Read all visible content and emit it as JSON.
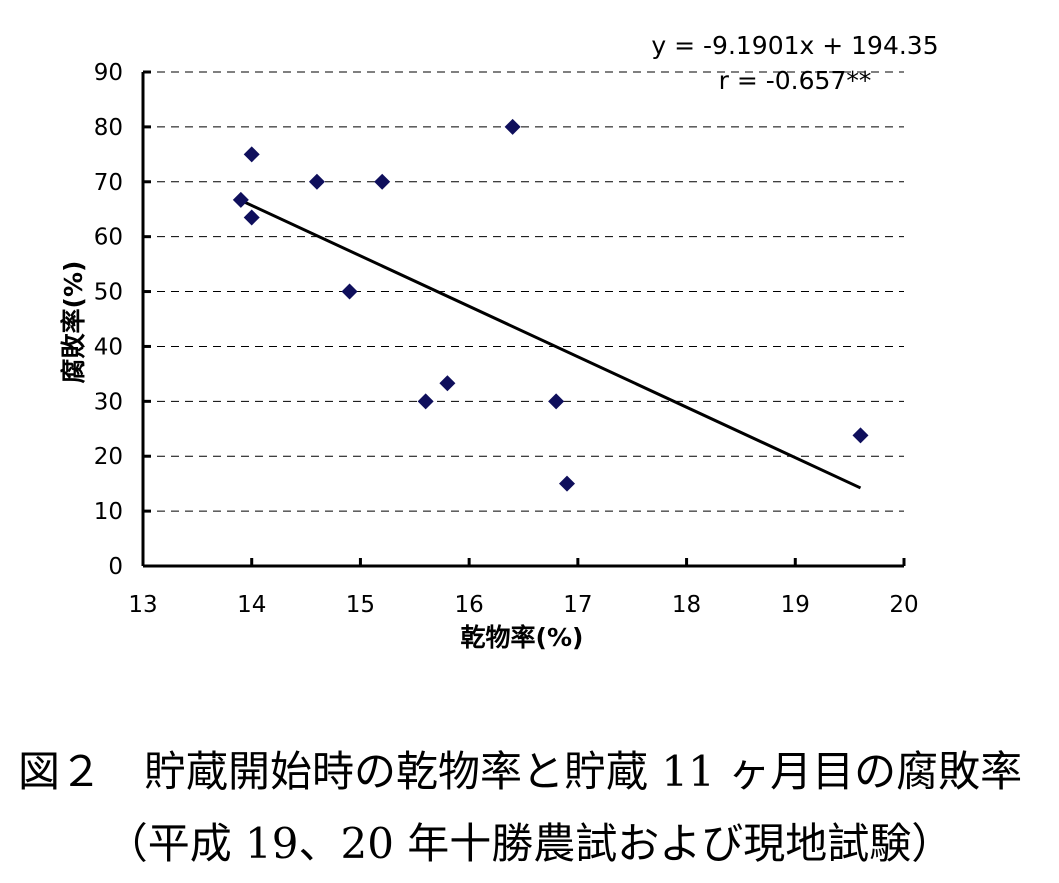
{
  "chart_data": {
    "type": "scatter",
    "xlabel": "乾物率(%)",
    "ylabel": "腐敗率(%)",
    "xlim": [
      13,
      20
    ],
    "ylim": [
      0,
      90
    ],
    "x_ticks": [
      "13",
      "14",
      "15",
      "16",
      "17",
      "18",
      "19",
      "20"
    ],
    "y_ticks": [
      "0",
      "10",
      "20",
      "30",
      "40",
      "50",
      "60",
      "70",
      "80",
      "90"
    ],
    "grid": "horizontal dashed",
    "marker": "diamond",
    "marker_color": "#0f0f5c",
    "points": [
      {
        "x": 13.9,
        "y": 66.7
      },
      {
        "x": 14.0,
        "y": 75.0
      },
      {
        "x": 14.0,
        "y": 63.5
      },
      {
        "x": 14.6,
        "y": 70.0
      },
      {
        "x": 14.9,
        "y": 50.0
      },
      {
        "x": 15.2,
        "y": 70.0
      },
      {
        "x": 15.6,
        "y": 30.0
      },
      {
        "x": 15.8,
        "y": 33.3
      },
      {
        "x": 16.4,
        "y": 80.0
      },
      {
        "x": 16.8,
        "y": 30.0
      },
      {
        "x": 16.9,
        "y": 15.0
      },
      {
        "x": 19.6,
        "y": 23.8
      }
    ],
    "trendline": {
      "slope": -9.1901,
      "intercept": 194.35,
      "x_range": [
        13.9,
        19.6
      ]
    },
    "annotations": [
      "y = -9.1901x + 194.35",
      "r = -0.657**"
    ]
  },
  "caption": {
    "line1": "図２　貯蔵開始時の乾物率と貯蔵 11 ヶ月目の腐敗率",
    "line2": "（平成 19、20 年十勝農試および現地試験）"
  }
}
